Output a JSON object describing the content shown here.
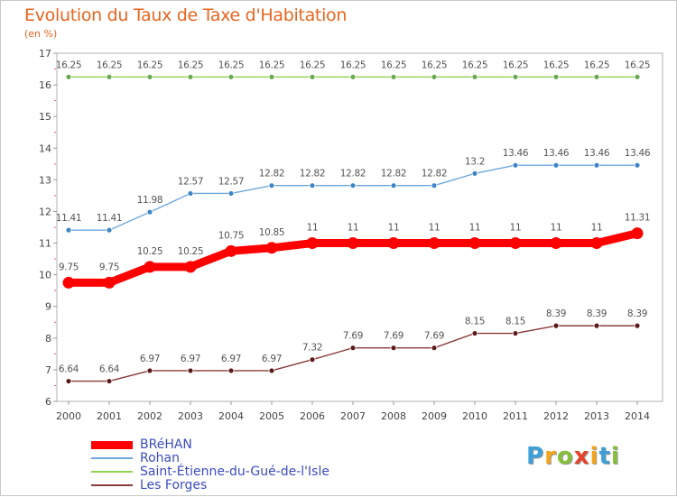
{
  "title": "Evolution du Taux de Taxe d'Habitation",
  "unit_label": "(en %)",
  "logo": {
    "text": "Proxiti",
    "letters": [
      {
        "ch": "P",
        "color": "#3ea0d8"
      },
      {
        "ch": "r",
        "color": "#f4a31d"
      },
      {
        "ch": "o",
        "color": "#86bf3b"
      },
      {
        "ch": "x",
        "color": "#e6412b"
      },
      {
        "ch": "i",
        "color": "#f4a31d"
      },
      {
        "ch": "t",
        "color": "#3ea0d8"
      },
      {
        "ch": "i",
        "color": "#86bf3b"
      }
    ]
  },
  "chart_data": {
    "type": "line",
    "title": "Evolution du Taux de Taxe d'Habitation",
    "ylabel": "(en %)",
    "x": [
      2000,
      2001,
      2002,
      2003,
      2004,
      2005,
      2006,
      2007,
      2008,
      2009,
      2010,
      2011,
      2012,
      2013,
      2014
    ],
    "ylim": [
      6,
      17
    ],
    "yticks": [
      6,
      7,
      8,
      9,
      10,
      11,
      12,
      13,
      14,
      15,
      16,
      17
    ],
    "grid": false,
    "legend_position": "bottom-left",
    "series": [
      {
        "name": "BRéHAN",
        "color": "#ff0000",
        "marker_color": "#ff0000",
        "emphasis": true,
        "values": [
          9.75,
          9.75,
          10.25,
          10.25,
          10.75,
          10.85,
          11,
          11,
          11,
          11,
          11,
          11,
          11,
          11,
          11.31
        ],
        "labels": [
          "9.75",
          "9.75",
          "10.25",
          "10.25",
          "10.75",
          "10.85",
          "11",
          "11",
          "11",
          "11",
          "11",
          "11",
          "11",
          "11",
          "11.31"
        ]
      },
      {
        "name": "Rohan",
        "color": "#6fa8dc",
        "marker_color": "#3d85c6",
        "emphasis": false,
        "values": [
          11.41,
          11.41,
          11.98,
          12.57,
          12.57,
          12.82,
          12.82,
          12.82,
          12.82,
          12.82,
          13.2,
          13.46,
          13.46,
          13.46,
          13.46
        ],
        "labels": [
          "11.41",
          "11.41",
          "11.98",
          "12.57",
          "12.57",
          "12.82",
          "12.82",
          "12.82",
          "12.82",
          "12.82",
          "13.2",
          "13.46",
          "13.46",
          "13.46",
          "13.46"
        ]
      },
      {
        "name": "Saint-Étienne-du-Gué-de-l'Isle",
        "color": "#93d150",
        "marker_color": "#6aa84f",
        "emphasis": false,
        "values": [
          16.25,
          16.25,
          16.25,
          16.25,
          16.25,
          16.25,
          16.25,
          16.25,
          16.25,
          16.25,
          16.25,
          16.25,
          16.25,
          16.25,
          16.25
        ],
        "labels": [
          "16.25",
          "16.25",
          "16.25",
          "16.25",
          "16.25",
          "16.25",
          "16.25",
          "16.25",
          "16.25",
          "16.25",
          "16.25",
          "16.25",
          "16.25",
          "16.25",
          "16.25"
        ]
      },
      {
        "name": "Les Forges",
        "color": "#8b3a3a",
        "marker_color": "#5c1a1a",
        "emphasis": false,
        "values": [
          6.64,
          6.64,
          6.97,
          6.97,
          6.97,
          6.97,
          7.32,
          7.69,
          7.69,
          7.69,
          8.15,
          8.15,
          8.39,
          8.39,
          8.39
        ],
        "labels": [
          "6.64",
          "6.64",
          "6.97",
          "6.97",
          "6.97",
          "6.97",
          "7.32",
          "7.69",
          "7.69",
          "7.69",
          "8.15",
          "8.15",
          "8.39",
          "8.39",
          "8.39"
        ]
      }
    ],
    "legend_order": [
      0,
      1,
      2,
      3
    ]
  }
}
